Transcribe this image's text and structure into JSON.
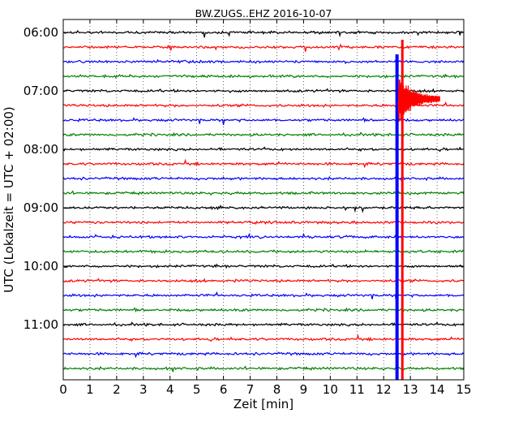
{
  "chart_data": {
    "type": "line",
    "title": "BW.ZUGS..EHZ 2016-10-07",
    "xlabel": "Zeit  [min]",
    "ylabel": "UTC (Lokalzeit = UTC + 02:00)",
    "x_ticks": [
      0,
      1,
      2,
      3,
      4,
      5,
      6,
      7,
      8,
      9,
      10,
      11,
      12,
      13,
      14,
      15
    ],
    "xlim": [
      0,
      15
    ],
    "y_ticks": [
      {
        "label": "06:00",
        "trace": 0
      },
      {
        "label": "07:00",
        "trace": 4
      },
      {
        "label": "08:00",
        "trace": 8
      },
      {
        "label": "09:00",
        "trace": 12
      },
      {
        "label": "10:00",
        "trace": 16
      },
      {
        "label": "11:00",
        "trace": 20
      }
    ],
    "trace_interval_min": 15,
    "trace_count": 24,
    "trace_colors": [
      "#000000",
      "#ff0000",
      "#0000ff",
      "#008000"
    ],
    "grid": true,
    "events": [
      {
        "name": "blue-event",
        "x_min": 12.5,
        "trace_start": 2,
        "trace_end": 24,
        "color": "#0000ff"
      },
      {
        "name": "red-event",
        "x_min": 12.7,
        "trace_start": 1,
        "trace_end": 24,
        "color": "#ff0000"
      }
    ]
  }
}
